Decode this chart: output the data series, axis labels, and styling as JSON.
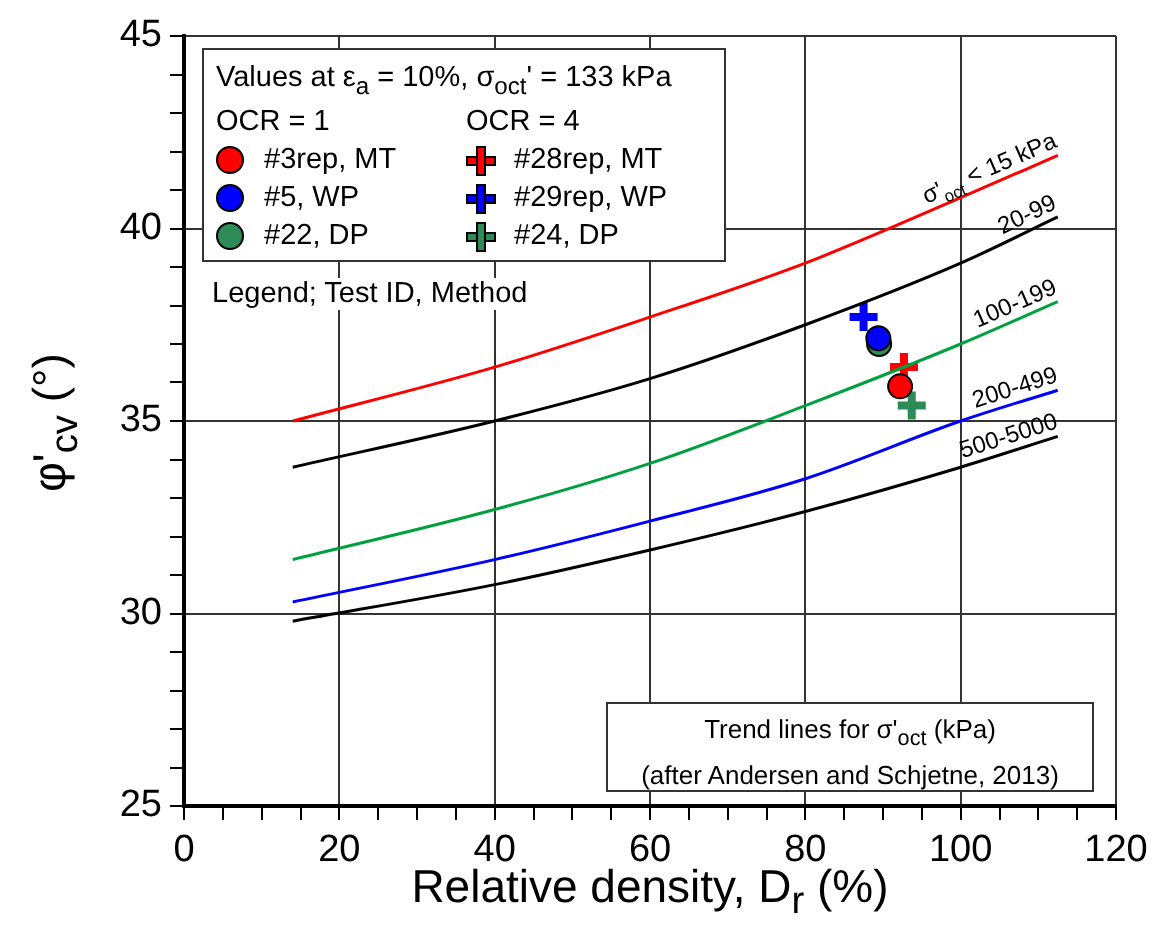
{
  "chart_data": {
    "type": "scatter",
    "xlabel": "Relative density, D$_{r}$ (%)",
    "ylabel": "φ'$_{cv}$ (°)",
    "legend_title": "Values at ε$_{a}$ = 10%, σ$_{oct}$' = 133 kPa",
    "xlim": [
      0,
      120
    ],
    "ylim": [
      25,
      45
    ],
    "xticks": [
      0,
      {
        "value": 5,
        "label": null
      },
      {
        "value": 10,
        "label": null
      },
      {
        "value": 15,
        "label": null
      },
      20,
      {
        "value": 25,
        "label": null
      },
      {
        "value": 30,
        "label": null
      },
      {
        "value": 35,
        "label": null
      },
      40,
      {
        "value": 45,
        "label": null
      },
      {
        "value": 50,
        "label": null
      },
      {
        "value": 55,
        "label": null
      },
      60,
      {
        "value": 65,
        "label": null
      },
      {
        "value": 70,
        "label": null
      },
      {
        "value": 75,
        "label": null
      },
      80,
      {
        "value": 85,
        "label": null
      },
      {
        "value": 90,
        "label": null
      },
      {
        "value": 95,
        "label": null
      },
      100,
      {
        "value": 105,
        "label": null
      },
      {
        "value": 110,
        "label": null
      },
      {
        "value": 115,
        "label": null
      },
      120
    ],
    "yticks": [
      25,
      {
        "value": 26,
        "label": null
      },
      {
        "value": 27,
        "label": null
      },
      {
        "value": 28,
        "label": null
      },
      {
        "value": 29,
        "label": null
      },
      30,
      {
        "value": 31,
        "label": null
      },
      {
        "value": 32,
        "label": null
      },
      {
        "value": 33,
        "label": null
      },
      {
        "value": 34,
        "label": null
      },
      35,
      {
        "value": 36,
        "label": null
      },
      {
        "value": 37,
        "label": null
      },
      {
        "value": 38,
        "label": null
      },
      {
        "value": 39,
        "label": null
      },
      40,
      {
        "value": 41,
        "label": null
      },
      {
        "value": 42,
        "label": null
      },
      {
        "value": 43,
        "label": null
      },
      {
        "value": 44,
        "label": null
      },
      45
    ],
    "grid": true,
    "legend": "top left",
    "series": [
      {
        "type": "line",
        "name": "σ'$_{oct}$ < 15 kPa",
        "color": "#ff0000",
        "marker": "none",
        "x": [
          14,
          40,
          60,
          80,
          100,
          112.5
        ],
        "values": [
          35.0,
          36.4,
          37.7,
          39.1,
          40.8,
          41.9
        ]
      },
      {
        "type": "line",
        "name": "20-99",
        "color": "#000000",
        "marker": "none",
        "x": [
          14,
          40,
          60,
          80,
          100,
          112.5
        ],
        "values": [
          33.8,
          35.0,
          36.1,
          37.5,
          39.1,
          40.3
        ]
      },
      {
        "type": "line",
        "name": "100-199",
        "color": "#00a040",
        "marker": "none",
        "x": [
          14,
          40,
          60,
          80,
          100,
          112.5
        ],
        "values": [
          31.4,
          32.7,
          33.9,
          35.4,
          37.0,
          38.1
        ]
      },
      {
        "type": "line",
        "name": "200-499",
        "color": "#0000ff",
        "marker": "none",
        "x": [
          14,
          40,
          60,
          80,
          100,
          112.5
        ],
        "values": [
          30.3,
          31.4,
          32.4,
          33.5,
          35.0,
          35.8
        ]
      },
      {
        "type": "line",
        "name": "500-5000",
        "color": "#000000",
        "marker": "none",
        "x": [
          14,
          40,
          60,
          80,
          100,
          112.5
        ],
        "values": [
          29.8,
          30.75,
          31.65,
          32.65,
          33.8,
          34.6
        ]
      },
      {
        "type": "scatter",
        "name": "#3rep, MT",
        "color": "#ff0000",
        "marker": "circle",
        "x": [
          92.2
        ],
        "values": [
          35.9
        ]
      },
      {
        "type": "scatter",
        "name": "#5, WP",
        "color": "#0000ff",
        "marker": "circle",
        "x": [
          89.4
        ],
        "values": [
          37.15
        ]
      },
      {
        "type": "scatter",
        "name": "#22, DP",
        "color": "#2e8b57",
        "marker": "circle",
        "x": [
          89.5
        ],
        "values": [
          37.0
        ]
      },
      {
        "type": "scatter",
        "name": "#28rep, MT",
        "color": "#ff0000",
        "marker": "cross",
        "x": [
          92.7
        ],
        "values": [
          36.4
        ]
      },
      {
        "type": "scatter",
        "name": "#29rep, WP",
        "color": "#0000ff",
        "marker": "cross",
        "x": [
          87.5
        ],
        "values": [
          37.7
        ]
      },
      {
        "type": "scatter",
        "name": "#24, DP",
        "color": "#2e8b57",
        "marker": "cross",
        "x": [
          93.7
        ],
        "values": [
          35.4
        ]
      }
    ],
    "annotations": [
      "OCR = 1",
      "OCR = 4",
      "Legend; Test ID, Method",
      "Trend lines for σ'$_{oct}$ (kPa)\n(after Andersen and Schjetne, 2013)"
    ]
  }
}
